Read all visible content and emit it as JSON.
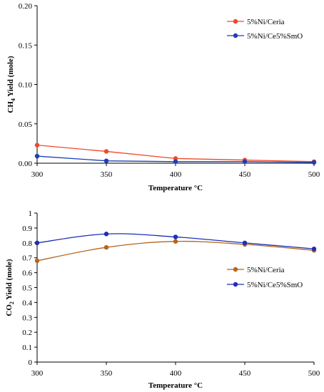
{
  "chart_data": [
    {
      "type": "line",
      "ylabel_main": "CH",
      "ylabel_sub": "4",
      "ylabel_rest": " Yield (mole)",
      "xlabel": "Temperature °C",
      "x": [
        300,
        350,
        400,
        450,
        500
      ],
      "xlim": [
        300,
        500
      ],
      "ylim": [
        0,
        0.2
      ],
      "yticks": [
        0.0,
        0.05,
        0.1,
        0.15,
        0.2
      ],
      "ytick_labels": [
        "0.00",
        "0.05",
        "0.10",
        "0.15",
        "0.20"
      ],
      "xtick_labels": [
        "300",
        "350",
        "400",
        "450",
        "500"
      ],
      "grid": false,
      "legend_position": "top-right",
      "series": [
        {
          "name": "5%Ni/Ceria",
          "color": "#f0492a",
          "values": [
            0.023,
            0.015,
            0.006,
            0.004,
            0.002
          ]
        },
        {
          "name": "5%Ni/Ce5%SmO",
          "color": "#1c3fb6",
          "values": [
            0.009,
            0.003,
            0.002,
            0.002,
            0.001
          ]
        }
      ]
    },
    {
      "type": "line",
      "ylabel_main": "CO",
      "ylabel_sub": "2",
      "ylabel_rest": " Yield (mole)",
      "xlabel": "Temperature °C",
      "x": [
        300,
        350,
        400,
        450,
        500
      ],
      "xlim": [
        300,
        500
      ],
      "ylim": [
        0,
        1
      ],
      "yticks": [
        0,
        0.1,
        0.2,
        0.3,
        0.4,
        0.5,
        0.6,
        0.7,
        0.8,
        0.9,
        1
      ],
      "ytick_labels": [
        "0",
        "0.1",
        "0.2",
        "0.3",
        "0.4",
        "0.5",
        "0.6",
        "0.7",
        "0.8",
        "0.9",
        "1"
      ],
      "xtick_labels": [
        "300",
        "350",
        "400",
        "450",
        "500"
      ],
      "grid": false,
      "smooth": true,
      "legend_position": "middle-right",
      "series": [
        {
          "name": "5%Ni/Ceria",
          "color": "#b5651d",
          "values": [
            0.68,
            0.77,
            0.81,
            0.79,
            0.75
          ]
        },
        {
          "name": "5%Ni/Ce5%SmO",
          "color": "#1c2fb8",
          "values": [
            0.8,
            0.86,
            0.84,
            0.8,
            0.76
          ]
        }
      ]
    }
  ]
}
